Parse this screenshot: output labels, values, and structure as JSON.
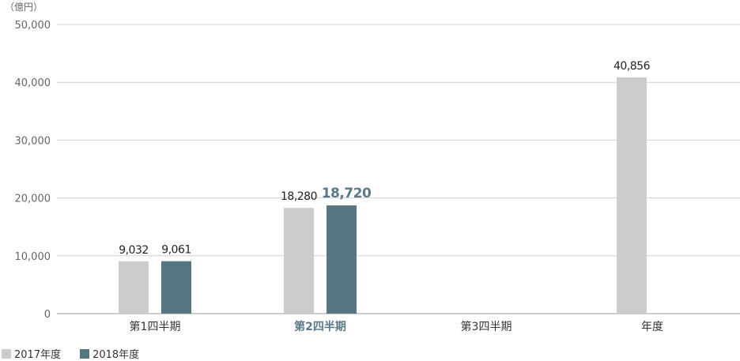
{
  "chart_data": {
    "type": "bar",
    "unit_label": "（億円）",
    "categories": [
      "第1四半期",
      "第2四半期",
      "第3四半期",
      "年度"
    ],
    "highlight_category": 1,
    "y_ticks": [
      0,
      10000,
      20000,
      30000,
      40000,
      50000
    ],
    "y_tick_labels": [
      "0",
      "10,000",
      "20,000",
      "30,000",
      "40,000",
      "50,000"
    ],
    "ylim": [
      0,
      50000
    ],
    "grid": true,
    "legend_position": "bottom-left",
    "series": [
      {
        "name": "2017年度",
        "color": "#cccccc",
        "values": [
          9032,
          18280,
          null,
          40856
        ],
        "labels": [
          "9,032",
          "18,280",
          "",
          "40,856"
        ]
      },
      {
        "name": "2018年度",
        "color": "#587582",
        "values": [
          9061,
          18720,
          null,
          null
        ],
        "labels": [
          "9,061",
          "18,720",
          "",
          ""
        ]
      }
    ]
  }
}
